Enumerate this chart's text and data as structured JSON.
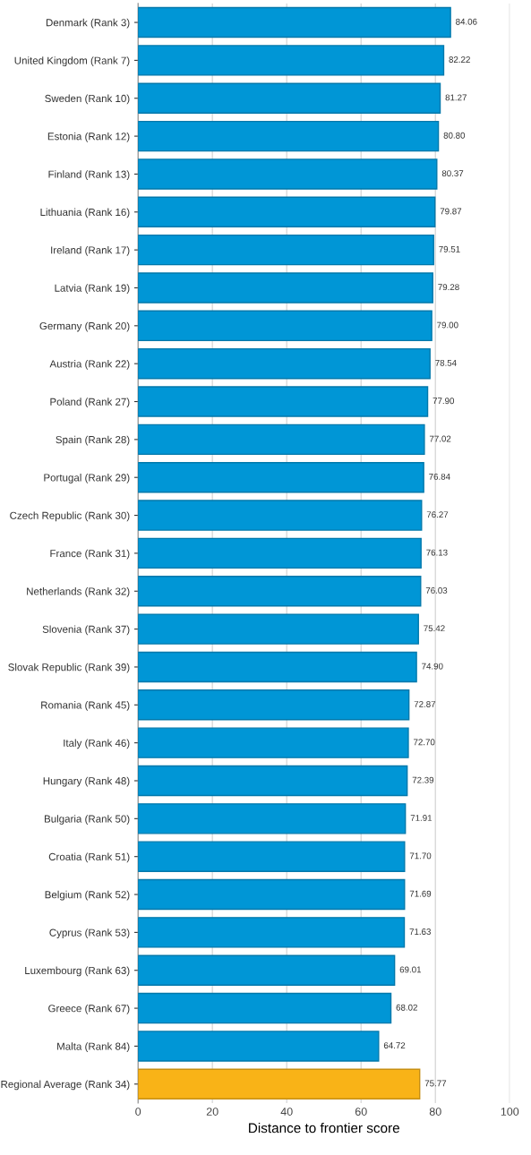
{
  "chart_data": {
    "type": "bar",
    "orientation": "horizontal",
    "xlabel": "Distance to frontier score",
    "categories": [
      "Denmark (Rank 3)",
      "United Kingdom (Rank 7)",
      "Sweden (Rank 10)",
      "Estonia (Rank 12)",
      "Finland (Rank 13)",
      "Lithuania (Rank 16)",
      "Ireland (Rank 17)",
      "Latvia (Rank 19)",
      "Germany (Rank 20)",
      "Austria (Rank 22)",
      "Poland (Rank 27)",
      "Spain (Rank 28)",
      "Portugal (Rank 29)",
      "Czech Republic (Rank 30)",
      "France (Rank 31)",
      "Netherlands (Rank 32)",
      "Slovenia (Rank 37)",
      "Slovak Republic (Rank 39)",
      "Romania (Rank 45)",
      "Italy (Rank 46)",
      "Hungary (Rank 48)",
      "Bulgaria (Rank 50)",
      "Croatia (Rank 51)",
      "Belgium (Rank 52)",
      "Cyprus (Rank 53)",
      "Luxembourg (Rank 63)",
      "Greece (Rank 67)",
      "Malta (Rank 84)",
      "Regional Average (Rank 34)"
    ],
    "values": [
      84.06,
      82.22,
      81.27,
      80.8,
      80.37,
      79.87,
      79.51,
      79.28,
      79.0,
      78.54,
      77.9,
      77.02,
      76.84,
      76.27,
      76.13,
      76.03,
      75.42,
      74.9,
      72.87,
      72.7,
      72.39,
      71.91,
      71.7,
      71.69,
      71.63,
      69.01,
      68.02,
      64.72,
      75.77
    ],
    "value_labels": [
      "84.06",
      "82.22",
      "81.27",
      "80.80",
      "80.37",
      "79.87",
      "79.51",
      "79.28",
      "79.00",
      "78.54",
      "77.90",
      "77.02",
      "76.84",
      "76.27",
      "76.13",
      "76.03",
      "75.42",
      "74.90",
      "72.87",
      "72.70",
      "72.39",
      "71.91",
      "71.70",
      "71.69",
      "71.63",
      "69.01",
      "68.02",
      "64.72",
      "75.77"
    ],
    "colors": [
      "#0096d6",
      "#0096d6",
      "#0096d6",
      "#0096d6",
      "#0096d6",
      "#0096d6",
      "#0096d6",
      "#0096d6",
      "#0096d6",
      "#0096d6",
      "#0096d6",
      "#0096d6",
      "#0096d6",
      "#0096d6",
      "#0096d6",
      "#0096d6",
      "#0096d6",
      "#0096d6",
      "#0096d6",
      "#0096d6",
      "#0096d6",
      "#0096d6",
      "#0096d6",
      "#0096d6",
      "#0096d6",
      "#0096d6",
      "#0096d6",
      "#0096d6",
      "#f9b317"
    ],
    "xlim": [
      0,
      100
    ],
    "xticks": [
      0,
      20,
      40,
      60,
      80,
      100
    ],
    "grid": "x"
  }
}
